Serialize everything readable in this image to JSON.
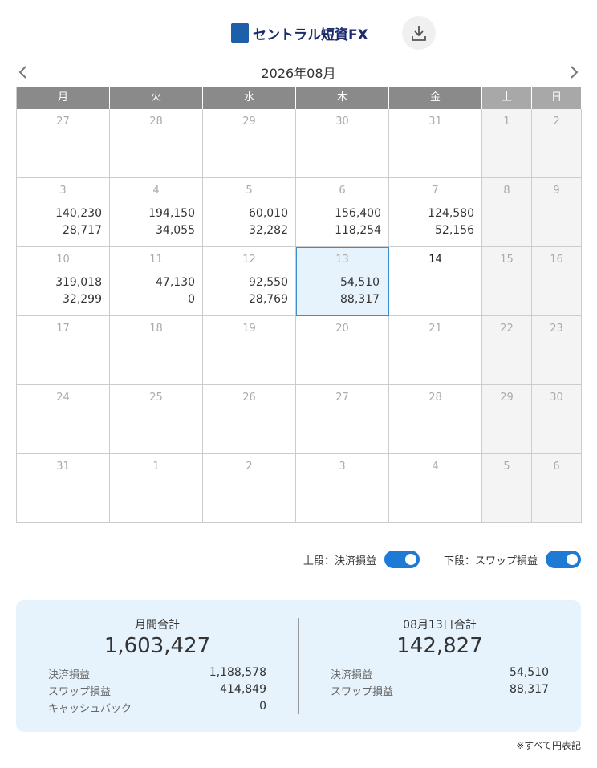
{
  "header": {
    "logo": "セントラル短資FX"
  },
  "calendar": {
    "month": "2026年08月",
    "weekdays": [
      "月",
      "火",
      "水",
      "木",
      "金",
      "土",
      "日"
    ],
    "weeks": [
      [
        {
          "day": "27"
        },
        {
          "day": "28"
        },
        {
          "day": "29"
        },
        {
          "day": "30"
        },
        {
          "day": "31"
        },
        {
          "day": "1"
        },
        {
          "day": "2"
        }
      ],
      [
        {
          "day": "3",
          "upper": "140,230",
          "lower": "28,717"
        },
        {
          "day": "4",
          "upper": "194,150",
          "lower": "34,055"
        },
        {
          "day": "5",
          "upper": "60,010",
          "lower": "32,282"
        },
        {
          "day": "6",
          "upper": "156,400",
          "lower": "118,254"
        },
        {
          "day": "7",
          "upper": "124,580",
          "lower": "52,156"
        },
        {
          "day": "8"
        },
        {
          "day": "9"
        }
      ],
      [
        {
          "day": "10",
          "upper": "319,018",
          "lower": "32,299"
        },
        {
          "day": "11",
          "upper": "47,130",
          "lower": "0"
        },
        {
          "day": "12",
          "upper": "92,550",
          "lower": "28,769"
        },
        {
          "day": "13",
          "upper": "54,510",
          "lower": "88,317",
          "selected": true
        },
        {
          "day": "14",
          "today": true
        },
        {
          "day": "15"
        },
        {
          "day": "16"
        }
      ],
      [
        {
          "day": "17"
        },
        {
          "day": "18"
        },
        {
          "day": "19"
        },
        {
          "day": "20"
        },
        {
          "day": "21"
        },
        {
          "day": "22"
        },
        {
          "day": "23"
        }
      ],
      [
        {
          "day": "24"
        },
        {
          "day": "25"
        },
        {
          "day": "26"
        },
        {
          "day": "27"
        },
        {
          "day": "28"
        },
        {
          "day": "29"
        },
        {
          "day": "30"
        }
      ],
      [
        {
          "day": "31"
        },
        {
          "day": "1"
        },
        {
          "day": "2"
        },
        {
          "day": "3"
        },
        {
          "day": "4"
        },
        {
          "day": "5"
        },
        {
          "day": "6"
        }
      ]
    ]
  },
  "toggles": [
    {
      "label": "上段：決済損益",
      "on": true
    },
    {
      "label": "下段：スワップ損益",
      "on": true
    }
  ],
  "summary": {
    "monthly": {
      "title": "月間合計",
      "total": "1,603,427",
      "rows": [
        [
          "決済損益",
          "1,188,578"
        ],
        [
          "スワップ損益",
          "414,849"
        ],
        [
          "キャッシュバック",
          "0"
        ]
      ]
    },
    "daily": {
      "title": "08月13日合計",
      "total": "142,827",
      "rows": [
        [
          "決済損益",
          "54,510"
        ],
        [
          "スワップ損益",
          "88,317"
        ]
      ]
    }
  },
  "footnote": "※すべて円表記"
}
